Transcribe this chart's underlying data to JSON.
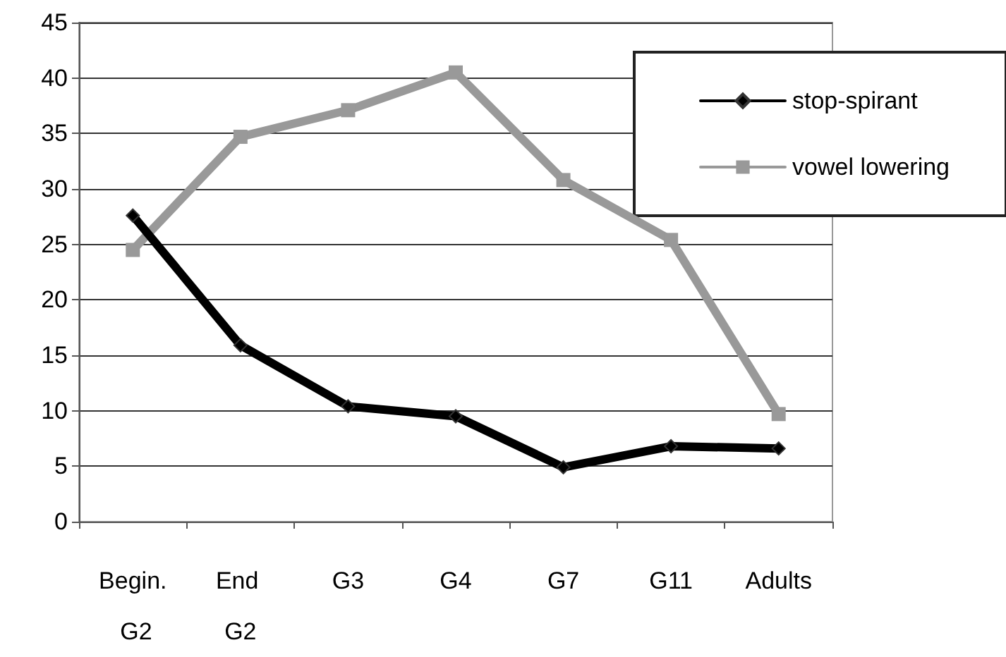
{
  "chart_data": {
    "type": "line",
    "categories": [
      "Begin. G2",
      "End G2",
      "G3",
      "G4",
      "G7",
      "G11",
      "Adults"
    ],
    "series": [
      {
        "name": "stop-spirant",
        "color": "#000000",
        "marker": "diamond",
        "values": [
          27.6,
          15.9,
          10.4,
          9.5,
          4.9,
          6.8,
          6.6
        ]
      },
      {
        "name": "vowel lowering",
        "color": "#999999",
        "marker": "square",
        "values": [
          24.5,
          34.7,
          37.1,
          40.5,
          30.8,
          25.4,
          9.7
        ]
      }
    ],
    "ylim": [
      0,
      45
    ],
    "yticks": [
      0,
      5,
      10,
      15,
      20,
      25,
      30,
      35,
      40,
      45
    ],
    "grid": "y",
    "legend": "top right",
    "line_style": "solid"
  }
}
